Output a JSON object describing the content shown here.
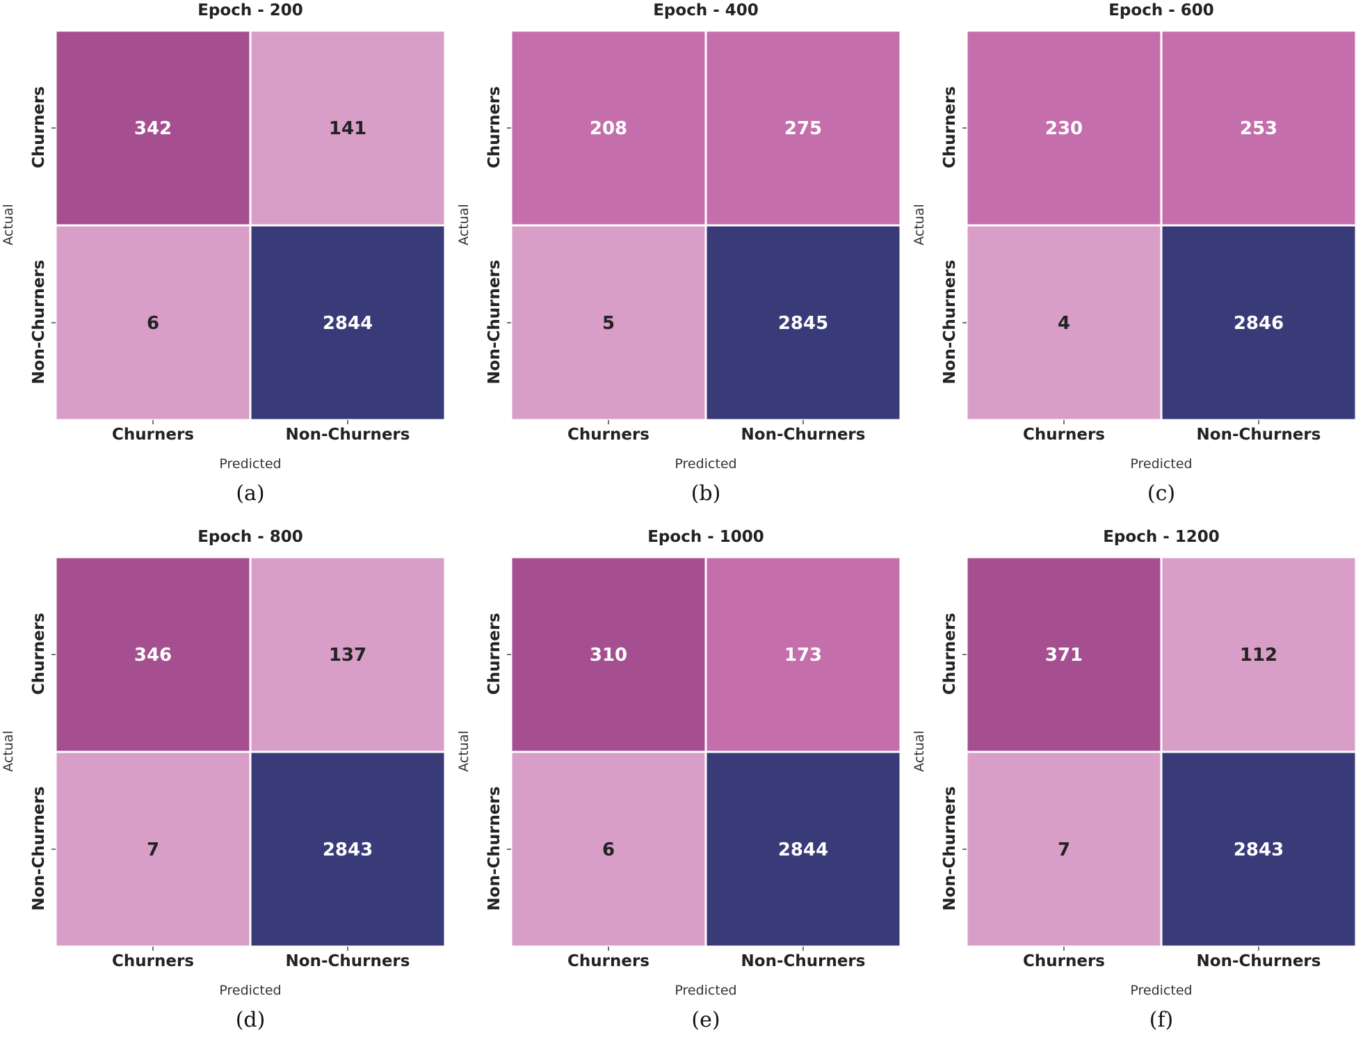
{
  "colors": {
    "dark": "#a54f90",
    "mid": "#c46fab",
    "light": "#d99ec8",
    "navy": "#393a78"
  },
  "chart_data": [
    {
      "type": "heatmap",
      "caption": "(a)",
      "title": "Epoch - 200",
      "xlabel": "Predicted",
      "ylabel": "Actual",
      "x_categories": [
        "Churners",
        "Non-Churners"
      ],
      "y_categories": [
        "Churners",
        "Non-Churners"
      ],
      "values": [
        [
          342,
          141
        ],
        [
          6,
          2844
        ]
      ]
    },
    {
      "type": "heatmap",
      "caption": "(b)",
      "title": "Epoch - 400",
      "xlabel": "Predicted",
      "ylabel": "Actual",
      "x_categories": [
        "Churners",
        "Non-Churners"
      ],
      "y_categories": [
        "Churners",
        "Non-Churners"
      ],
      "values": [
        [
          208,
          275
        ],
        [
          5,
          2845
        ]
      ]
    },
    {
      "type": "heatmap",
      "caption": "(c)",
      "title": "Epoch - 600",
      "xlabel": "Predicted",
      "ylabel": "Actual",
      "x_categories": [
        "Churners",
        "Non-Churners"
      ],
      "y_categories": [
        "Churners",
        "Non-Churners"
      ],
      "values": [
        [
          230,
          253
        ],
        [
          4,
          2846
        ]
      ]
    },
    {
      "type": "heatmap",
      "caption": "(d)",
      "title": "Epoch - 800",
      "xlabel": "Predicted",
      "ylabel": "Actual",
      "x_categories": [
        "Churners",
        "Non-Churners"
      ],
      "y_categories": [
        "Churners",
        "Non-Churners"
      ],
      "values": [
        [
          346,
          137
        ],
        [
          7,
          2843
        ]
      ]
    },
    {
      "type": "heatmap",
      "caption": "(e)",
      "title": "Epoch - 1000",
      "xlabel": "Predicted",
      "ylabel": "Actual",
      "x_categories": [
        "Churners",
        "Non-Churners"
      ],
      "y_categories": [
        "Churners",
        "Non-Churners"
      ],
      "values": [
        [
          310,
          173
        ],
        [
          6,
          2844
        ]
      ]
    },
    {
      "type": "heatmap",
      "caption": "(f)",
      "title": "Epoch - 1200",
      "xlabel": "Predicted",
      "ylabel": "Actual",
      "x_categories": [
        "Churners",
        "Non-Churners"
      ],
      "y_categories": [
        "Churners",
        "Non-Churners"
      ],
      "values": [
        [
          371,
          112
        ],
        [
          7,
          2843
        ]
      ]
    }
  ]
}
